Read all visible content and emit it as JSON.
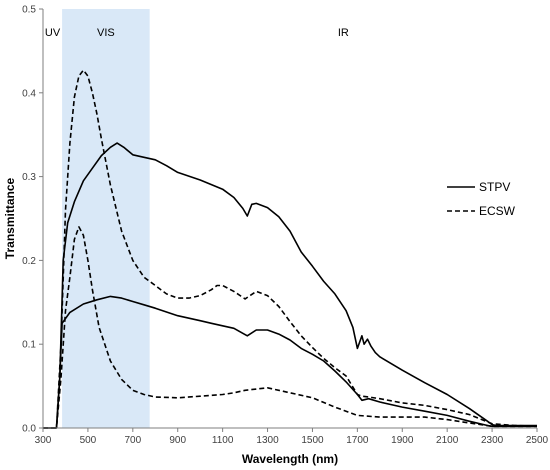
{
  "chart_data": {
    "type": "line",
    "xlabel": "Wavelength (nm)",
    "ylabel": "Transmittance",
    "xlim": [
      300,
      2500
    ],
    "ylim": [
      0,
      0.5
    ],
    "x_ticks": [
      300,
      500,
      700,
      900,
      1100,
      1300,
      1500,
      1700,
      1900,
      2100,
      2300,
      2500
    ],
    "y_ticks": [
      0.0,
      0.1,
      0.2,
      0.3,
      0.4,
      0.5
    ],
    "y_tick_labels": [
      "0.0",
      "0.1",
      "0.2",
      "0.3",
      "0.4",
      "0.5"
    ],
    "grid": false,
    "legend_position": "right",
    "regions": [
      {
        "label": "UV",
        "x_start": 300,
        "x_end": 385,
        "shaded": false
      },
      {
        "label": "VIS",
        "x_start": 385,
        "x_end": 775,
        "shaded": true,
        "color": "#d9e8f7"
      },
      {
        "label": "IR",
        "x_start": 775,
        "x_end": 2500,
        "shaded": false
      }
    ],
    "legend": [
      {
        "name": "STPV",
        "style": "solid"
      },
      {
        "name": "ECSW",
        "style": "dashed"
      }
    ],
    "series": [
      {
        "name": "STPV",
        "style": "solid",
        "x": [
          300,
          360,
          375,
          390,
          410,
          440,
          480,
          520,
          560,
          600,
          630,
          660,
          700,
          750,
          800,
          850,
          900,
          1000,
          1100,
          1150,
          1190,
          1210,
          1230,
          1250,
          1300,
          1350,
          1400,
          1450,
          1500,
          1550,
          1600,
          1650,
          1680,
          1700,
          1720,
          1730,
          1745,
          1760,
          1780,
          1800,
          1900,
          2000,
          2100,
          2200,
          2280,
          2300,
          2320,
          2400,
          2500
        ],
        "values": [
          0,
          0.0,
          0.06,
          0.2,
          0.245,
          0.27,
          0.295,
          0.31,
          0.325,
          0.335,
          0.34,
          0.335,
          0.326,
          0.323,
          0.32,
          0.313,
          0.305,
          0.296,
          0.285,
          0.275,
          0.262,
          0.253,
          0.267,
          0.268,
          0.263,
          0.252,
          0.235,
          0.21,
          0.193,
          0.175,
          0.16,
          0.14,
          0.12,
          0.095,
          0.11,
          0.1,
          0.106,
          0.098,
          0.09,
          0.085,
          0.069,
          0.054,
          0.04,
          0.023,
          0.008,
          0.004,
          0.003,
          0.003,
          0.003
        ]
      },
      {
        "name": "STPV",
        "style": "solid",
        "x": [
          300,
          360,
          375,
          385,
          420,
          480,
          540,
          600,
          650,
          700,
          750,
          800,
          900,
          1000,
          1050,
          1100,
          1150,
          1190,
          1210,
          1250,
          1300,
          1350,
          1400,
          1450,
          1500,
          1550,
          1600,
          1650,
          1700,
          1720,
          1750,
          1800,
          1900,
          2000,
          2100,
          2200,
          2280,
          2300,
          2400,
          2500
        ],
        "values": [
          0,
          0.0,
          0.06,
          0.125,
          0.138,
          0.148,
          0.153,
          0.157,
          0.155,
          0.151,
          0.147,
          0.143,
          0.134,
          0.128,
          0.125,
          0.122,
          0.119,
          0.113,
          0.11,
          0.117,
          0.117,
          0.112,
          0.105,
          0.095,
          0.088,
          0.08,
          0.068,
          0.055,
          0.04,
          0.033,
          0.035,
          0.031,
          0.025,
          0.02,
          0.015,
          0.008,
          0.003,
          0.002,
          0.002,
          0.002
        ]
      },
      {
        "name": "ECSW",
        "style": "dashed",
        "x": [
          300,
          360,
          380,
          400,
          420,
          440,
          460,
          480,
          500,
          520,
          540,
          560,
          600,
          650,
          700,
          750,
          800,
          850,
          900,
          950,
          1000,
          1050,
          1075,
          1100,
          1150,
          1200,
          1250,
          1300,
          1350,
          1400,
          1450,
          1500,
          1550,
          1600,
          1650,
          1700,
          1720,
          1750,
          1800,
          1900,
          2000,
          2100,
          2200,
          2300,
          2400,
          2500
        ],
        "values": [
          0,
          0.0,
          0.1,
          0.26,
          0.34,
          0.395,
          0.42,
          0.427,
          0.42,
          0.4,
          0.375,
          0.345,
          0.29,
          0.235,
          0.2,
          0.18,
          0.17,
          0.16,
          0.155,
          0.155,
          0.158,
          0.165,
          0.17,
          0.17,
          0.163,
          0.154,
          0.163,
          0.158,
          0.145,
          0.127,
          0.11,
          0.096,
          0.083,
          0.072,
          0.062,
          0.04,
          0.038,
          0.037,
          0.035,
          0.03,
          0.027,
          0.022,
          0.016,
          0.005,
          0.003,
          0.002
        ]
      },
      {
        "name": "ECSW",
        "style": "dashed",
        "x": [
          300,
          360,
          380,
          400,
          420,
          440,
          460,
          480,
          500,
          520,
          550,
          600,
          650,
          700,
          750,
          800,
          900,
          1000,
          1100,
          1150,
          1200,
          1300,
          1400,
          1500,
          1600,
          1700,
          1800,
          1900,
          2000,
          2100,
          2200,
          2300,
          2400,
          2500
        ],
        "values": [
          0,
          0.0,
          0.06,
          0.14,
          0.18,
          0.225,
          0.24,
          0.23,
          0.2,
          0.165,
          0.12,
          0.08,
          0.058,
          0.045,
          0.04,
          0.037,
          0.036,
          0.038,
          0.04,
          0.042,
          0.045,
          0.048,
          0.042,
          0.036,
          0.025,
          0.015,
          0.013,
          0.013,
          0.013,
          0.01,
          0.006,
          0.002,
          0.002,
          0.002
        ]
      }
    ]
  }
}
